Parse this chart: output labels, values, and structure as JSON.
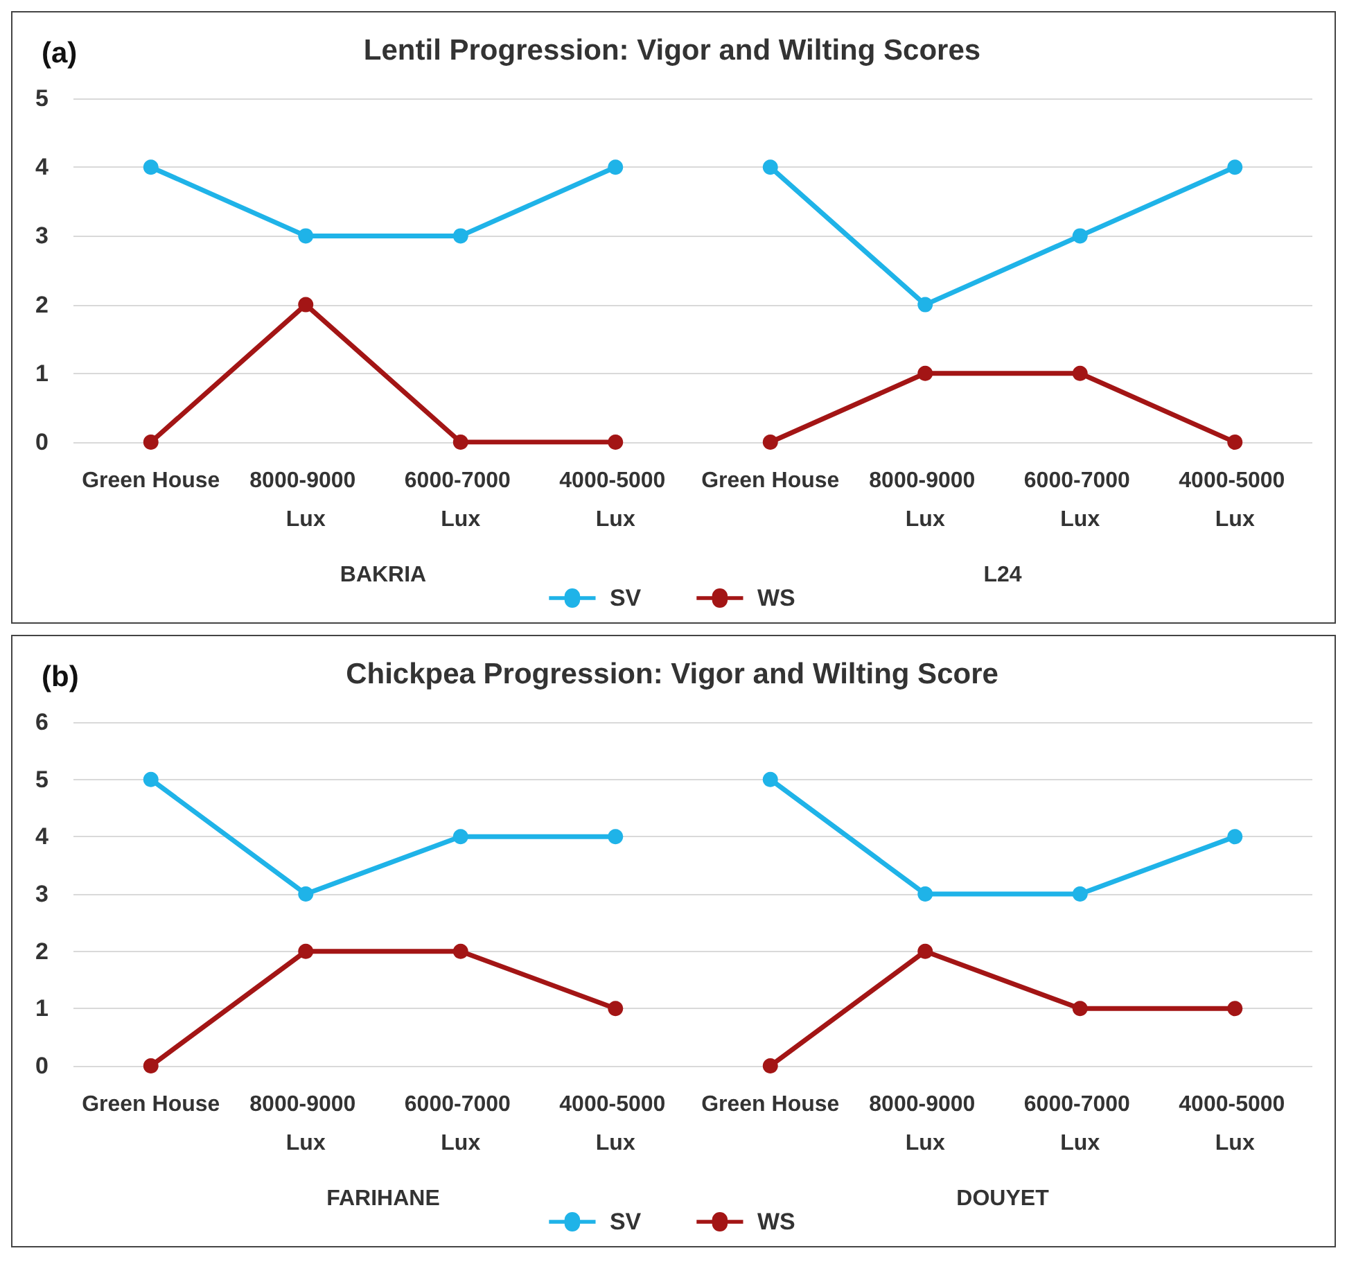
{
  "chart_data": [
    {
      "type": "line",
      "title": "Lentil Progression: Vigor and Wilting Scores",
      "subtitle": "(a)",
      "categories": [
        "Green House",
        "8000-9000 Lux",
        "6000-7000 Lux",
        "4000-5000 Lux",
        "Green House",
        "8000-9000 Lux",
        "6000-7000 Lux",
        "4000-5000 Lux"
      ],
      "annotations": [
        "BAKRIA",
        "L24"
      ],
      "series": [
        {
          "name": "SV",
          "color": "#1fb3e8",
          "values": [
            4,
            3,
            3,
            4,
            4,
            2,
            3,
            4
          ]
        },
        {
          "name": "WS",
          "color": "#a31515",
          "values": [
            0,
            2,
            0,
            0,
            0,
            1,
            1,
            0
          ]
        }
      ],
      "ylim": [
        0,
        5
      ],
      "yticks": [
        0,
        1,
        2,
        3,
        4,
        5
      ],
      "grid": "y",
      "legend": "bottom",
      "marker": "circle",
      "line_style": "solid"
    },
    {
      "type": "line",
      "title": "Chickpea Progression: Vigor and Wilting Score",
      "subtitle": "(b)",
      "categories": [
        "Green House",
        "8000-9000 Lux",
        "6000-7000 Lux",
        "4000-5000 Lux",
        "Green House",
        "8000-9000 Lux",
        "6000-7000 Lux",
        "4000-5000 Lux"
      ],
      "annotations": [
        "FARIHANE",
        "DOUYET"
      ],
      "series": [
        {
          "name": "SV",
          "color": "#1fb3e8",
          "values": [
            5,
            3,
            4,
            4,
            5,
            3,
            3,
            4
          ]
        },
        {
          "name": "WS",
          "color": "#a31515",
          "values": [
            0,
            2,
            2,
            1,
            0,
            2,
            1,
            1
          ]
        }
      ],
      "ylim": [
        0,
        6
      ],
      "yticks": [
        0,
        1,
        2,
        3,
        4,
        5,
        6
      ],
      "grid": "y",
      "legend": "bottom",
      "marker": "circle",
      "line_style": "solid"
    }
  ]
}
